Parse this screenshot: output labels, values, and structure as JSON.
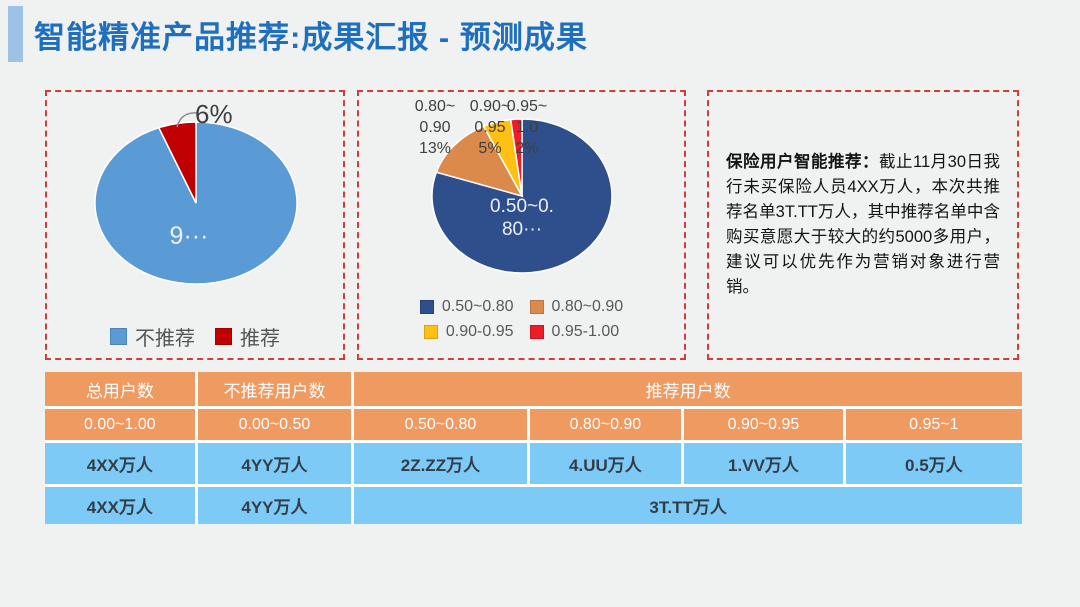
{
  "header": {
    "title": "智能精准产品推荐:成果汇报 - 预测成果"
  },
  "chart_data": [
    {
      "type": "pie",
      "categories": [
        "不推荐",
        "推荐"
      ],
      "values": [
        94,
        6
      ],
      "colors": [
        "#5b9bd5",
        "#c00000"
      ],
      "inner_label": "9···",
      "callout_label": "6%",
      "legend": [
        "不推荐",
        "推荐"
      ],
      "legend_position": "bottom"
    },
    {
      "type": "pie",
      "categories": [
        "0.50~0.80",
        "0.80~0.90",
        "0.90~0.95",
        "0.95~1.00"
      ],
      "values": [
        80,
        13,
        5,
        2
      ],
      "colors": [
        "#2f4e8c",
        "#dc8a4b",
        "#ffc014",
        "#ec1c29"
      ],
      "inner_label_lines": [
        "0.50~0.",
        "80···"
      ],
      "outer_labels": [
        [
          "0.80~",
          "0.90",
          "13%"
        ],
        [
          "0.90~",
          "0.95",
          "5%"
        ],
        [
          "0.95~",
          "1.0",
          "2%"
        ]
      ],
      "legend": [
        "0.50~0.80",
        "0.80~0.90",
        "0.90-0.95",
        "0.95-1.00"
      ],
      "legend_position": "bottom"
    }
  ],
  "info_box": {
    "title": "保险用户智能推荐",
    "separator": "：",
    "body": "截止11月30日我行未买保险人员4XX万人，本次共推荐名单3T.TT万人，其中推荐名单中含购买意愿大于较大的约5000多用户，建议可以优先作为营销对象进行营销。"
  },
  "table": {
    "header_row1": [
      "总用户数",
      "不推荐用户数",
      "推荐用户数"
    ],
    "header_row2": [
      "0.00~1.00",
      "0.00~0.50",
      "0.50~0.80",
      "0.80~0.90",
      "0.90~0.95",
      "0.95~1"
    ],
    "data_row1": [
      "4XX万人",
      "4YY万人",
      "2Z.ZZ万人",
      "4.UU万人",
      "1.VV万人",
      "0.5万人"
    ],
    "data_row2": [
      "4XX万人",
      "4YY万人",
      "3T.TT万人"
    ]
  }
}
